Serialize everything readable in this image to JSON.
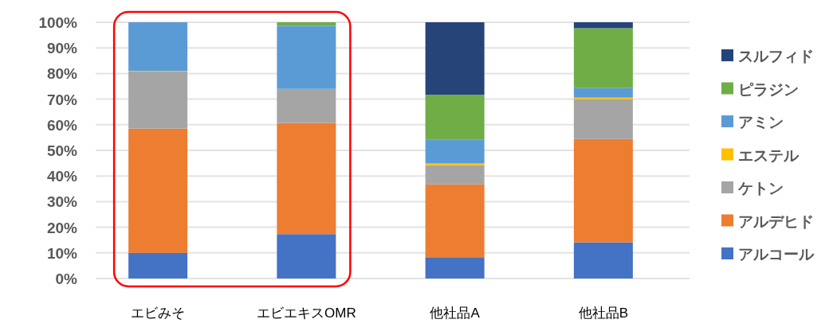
{
  "chart_data": {
    "type": "bar",
    "stacked": true,
    "categories": [
      "エビみそ",
      "エビエキスOMR",
      "他社品A",
      "他社品B"
    ],
    "series": [
      {
        "name": "アルコール",
        "color": "#4472c4",
        "values": [
          10,
          17.3,
          8.3,
          14.1
        ]
      },
      {
        "name": "アルデヒド",
        "color": "#ed7d31",
        "values": [
          48.5,
          43.4,
          28.4,
          40.3
        ]
      },
      {
        "name": "ケトン",
        "color": "#a5a5a5",
        "values": [
          22.3,
          13.3,
          7.5,
          15.6
        ]
      },
      {
        "name": "エステル",
        "color": "#ffc000",
        "values": [
          0.2,
          0,
          0.7,
          0.6
        ]
      },
      {
        "name": "アミン",
        "color": "#5b9bd5",
        "values": [
          19,
          24.6,
          9.2,
          3.7
        ]
      },
      {
        "name": "ピラジン",
        "color": "#70ad47",
        "values": [
          0,
          1.4,
          17.6,
          23.4
        ]
      },
      {
        "name": "スルフィド",
        "color": "#264478",
        "values": [
          0,
          0,
          28.3,
          2.3
        ]
      }
    ],
    "ylim": [
      0,
      100
    ],
    "yticks": [
      {
        "value": 0,
        "label": "0%"
      },
      {
        "value": 10,
        "label": "10%"
      },
      {
        "value": 20,
        "label": "20%"
      },
      {
        "value": 30,
        "label": "30%"
      },
      {
        "value": 40,
        "label": "40%"
      },
      {
        "value": 50,
        "label": "50%"
      },
      {
        "value": 60,
        "label": "60%"
      },
      {
        "value": 70,
        "label": "70%"
      },
      {
        "value": 80,
        "label": "80%"
      },
      {
        "value": 90,
        "label": "90%"
      },
      {
        "value": 100,
        "label": "100%"
      }
    ],
    "grid": "y",
    "legend": "right"
  }
}
